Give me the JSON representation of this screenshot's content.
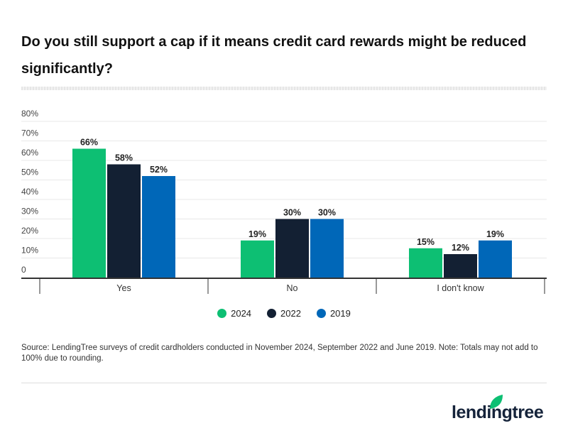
{
  "title": "Do you still support a cap if it means credit card rewards might be reduced significantly?",
  "chart_data": {
    "type": "bar",
    "title": "Do you still support a cap if it means credit card rewards might be reduced significantly?",
    "categories": [
      "Yes",
      "No",
      "I don't know"
    ],
    "series": [
      {
        "name": "2024",
        "color": "#0dbf73",
        "values": [
          66,
          19,
          15
        ]
      },
      {
        "name": "2022",
        "color": "#132033",
        "values": [
          58,
          30,
          12
        ]
      },
      {
        "name": "2019",
        "color": "#0067b8",
        "values": [
          52,
          30,
          19
        ]
      }
    ],
    "y_ticks": [
      "0",
      "10%",
      "20%",
      "30%",
      "40%",
      "50%",
      "60%",
      "70%",
      "80%"
    ],
    "ylim": [
      0,
      80
    ],
    "grid": true,
    "legend": "bottom",
    "data_label_suffix": "%"
  },
  "source": "Source: LendingTree surveys of credit cardholders conducted in November 2024, September 2022 and June 2019. Note: Totals may not add to 100% due to rounding.",
  "logo": "lendingtree"
}
